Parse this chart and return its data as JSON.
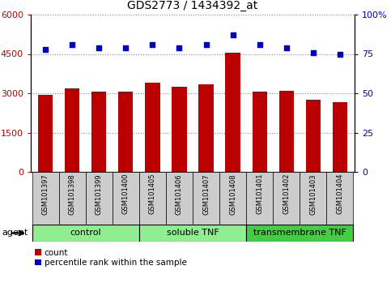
{
  "title": "GDS2773 / 1434392_at",
  "samples": [
    "GSM101397",
    "GSM101398",
    "GSM101399",
    "GSM101400",
    "GSM101405",
    "GSM101406",
    "GSM101407",
    "GSM101408",
    "GSM101401",
    "GSM101402",
    "GSM101403",
    "GSM101404"
  ],
  "counts": [
    2950,
    3200,
    3050,
    3050,
    3400,
    3250,
    3350,
    4550,
    3050,
    3100,
    2750,
    2650
  ],
  "percentile": [
    78,
    81,
    79,
    79,
    81,
    79,
    81,
    87,
    81,
    79,
    76,
    75
  ],
  "bar_color": "#bb0000",
  "dot_color": "#0000bb",
  "ylim_left": [
    0,
    6000
  ],
  "ylim_right": [
    0,
    100
  ],
  "yticks_left": [
    0,
    1500,
    3000,
    4500,
    6000
  ],
  "yticks_right": [
    0,
    25,
    50,
    75,
    100
  ],
  "right_pct_labels": [
    "0",
    "25",
    "50",
    "75",
    "100%"
  ],
  "group_ranges": [
    [
      0,
      4,
      "control",
      "#90ee90"
    ],
    [
      4,
      8,
      "soluble TNF",
      "#90ee90"
    ],
    [
      8,
      12,
      "transmembrane TNF",
      "#44cc44"
    ]
  ],
  "agent_label": "agent",
  "legend_count_label": "count",
  "legend_pct_label": "percentile rank within the sample",
  "grid_color": "#888888",
  "xticklabel_bg": "#cccccc",
  "title_fontsize": 10,
  "tick_fontsize": 8,
  "label_fontsize": 8
}
